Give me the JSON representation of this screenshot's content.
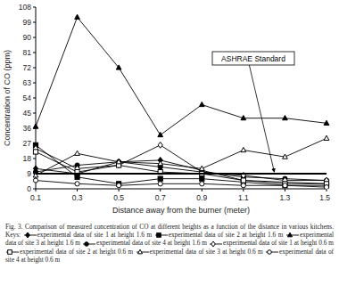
{
  "chart_data": {
    "type": "line",
    "title": "Fig. 3. Comparison of measured concentration of CO at different heights as a function of the distance in various kitchens. Keys:",
    "x_label": "Distance away from the burner (meter)",
    "y_label": "Concentration of CO (ppm)",
    "x": [
      0.1,
      0.3,
      0.5,
      0.7,
      0.9,
      1.1,
      1.3,
      1.5
    ],
    "xlim": [
      0.1,
      1.5
    ],
    "xticks": [
      0.1,
      0.3,
      0.5,
      0.7,
      0.9,
      1.1,
      1.3,
      1.5
    ],
    "ylim": [
      0,
      108
    ],
    "yticks": [
      0,
      9,
      18,
      27,
      36,
      45,
      54,
      63,
      72,
      81,
      90,
      99,
      108
    ],
    "grid": false,
    "series": [
      {
        "name": "experimental data of site 1 at height 1.6 m",
        "color": "#000000",
        "marker": "diamond",
        "line_style": "solid",
        "values": [
          12,
          9,
          16,
          17,
          11,
          5,
          4,
          3
        ]
      },
      {
        "name": "experimental data of site 2 at height 1.6 m",
        "color": "#000000",
        "marker": "square",
        "line_style": "solid",
        "values": [
          26,
          7,
          3,
          6,
          6,
          4,
          2,
          2
        ]
      },
      {
        "name": "experimental data of site 3 at height 1.6 m",
        "color": "#000000",
        "marker": "triangle",
        "line_style": "solid",
        "values": [
          37,
          102,
          72,
          32,
          50,
          42,
          42,
          39
        ]
      },
      {
        "name": "experimental data of site 4 at height 1.6 m",
        "color": "#000000",
        "marker": "circle",
        "line_style": "solid",
        "values": [
          10,
          14,
          16,
          13,
          10,
          7,
          6,
          5
        ]
      },
      {
        "name": "experimental data of site 1 at height 0.6 m",
        "color": "#000000",
        "marker": "diamond-open",
        "line_style": "solid",
        "values": [
          24,
          12,
          14,
          26,
          10,
          8,
          5,
          5
        ]
      },
      {
        "name": "experimental data of site 2 at height 0.6 m",
        "color": "#000000",
        "marker": "square-open",
        "line_style": "solid",
        "values": [
          22,
          10,
          14,
          10,
          9,
          5,
          3,
          3
        ]
      },
      {
        "name": "experimental data of site 3 at height 0.6 m",
        "color": "#000000",
        "marker": "triangle-open",
        "line_style": "solid",
        "values": [
          8,
          21,
          16,
          15,
          12,
          23,
          19,
          30
        ]
      },
      {
        "name": "experimental data of site 4 at height 0.6 m",
        "color": "#000000",
        "marker": "circle-open",
        "line_style": "solid",
        "values": [
          5,
          3,
          2,
          3,
          3,
          2,
          2,
          1
        ]
      },
      {
        "name": "ASHRAE Standard",
        "color": "#000000",
        "marker": "none",
        "line_style": "solid",
        "values": [
          9,
          9,
          9,
          9,
          9,
          9,
          9,
          9
        ]
      }
    ]
  }
}
